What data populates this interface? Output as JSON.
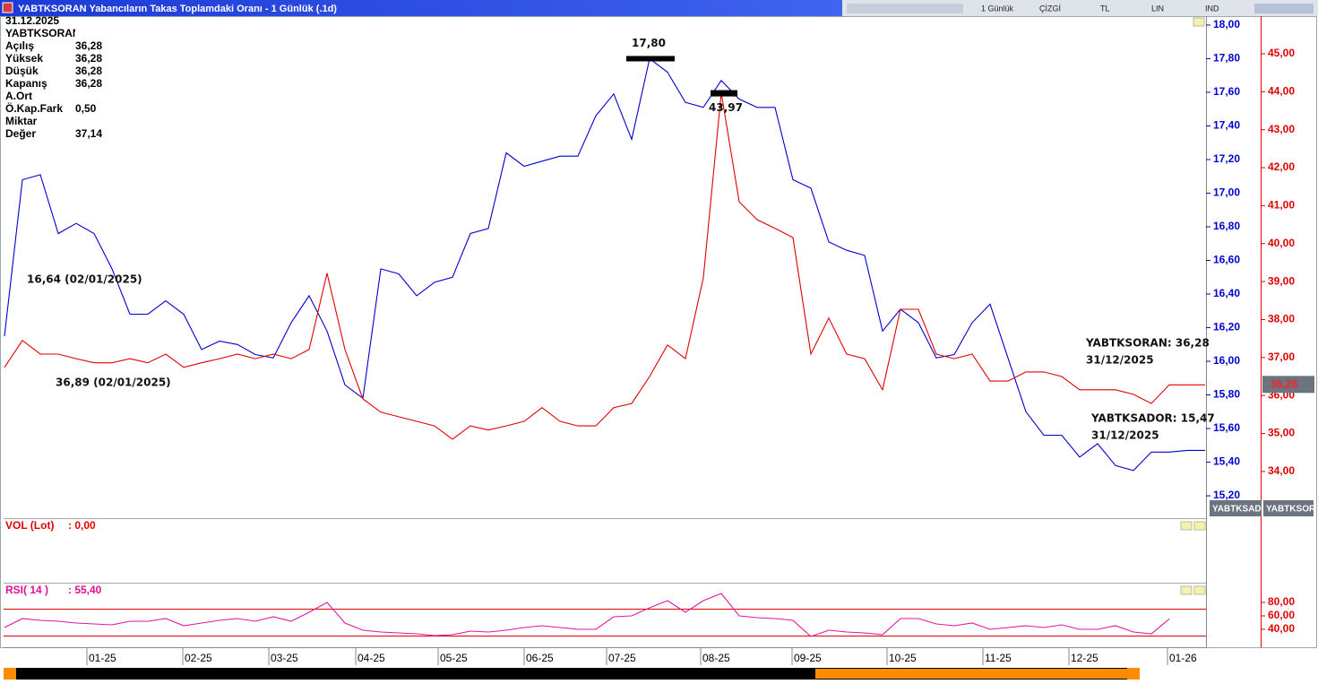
{
  "window": {
    "title": "YABTKSORAN Yabancıların Takas Toplamdaki Oranı - 1 Günlük (.1d)",
    "toolbar": [
      "1 Günlük",
      "ÇİZGİ",
      "TL",
      "LIN",
      "IND"
    ]
  },
  "info": {
    "date": "31.12.2025",
    "symbol": "YABTKSORAN",
    "rows": [
      {
        "label": "Açılış",
        "value": "36,28"
      },
      {
        "label": "Yüksek",
        "value": "36,28"
      },
      {
        "label": "Düşük",
        "value": "36,28"
      },
      {
        "label": "Kapanış",
        "value": "36,28"
      },
      {
        "label": "A.Ort"
      },
      {
        "label": "Ö.Kap.Fark",
        "value": "0,50"
      },
      {
        "label": "Miktar"
      },
      {
        "label": "Değer",
        "value": "37,14"
      }
    ]
  },
  "panels": {
    "vol": {
      "label": "VOL (Lot)",
      "value": ": 0,00"
    },
    "rsi": {
      "value": ": 55,40"
    }
  },
  "chart_data": [
    {
      "type": "line",
      "xlim": [
        0,
        67
      ],
      "xticks": [
        {
          "value": 4.6,
          "label": "01-25"
        },
        {
          "value": 9.95,
          "label": "02-25"
        },
        {
          "value": 14.75,
          "label": "03-25"
        },
        {
          "value": 19.6,
          "label": "04-25"
        },
        {
          "value": 24.2,
          "label": "05-25"
        },
        {
          "value": 29,
          "label": "06-25"
        },
        {
          "value": 33.6,
          "label": "07-25"
        },
        {
          "value": 38.85,
          "label": "08-25"
        },
        {
          "value": 43.95,
          "label": "09-25"
        },
        {
          "value": 49.25,
          "label": "10-25"
        },
        {
          "value": 54.6,
          "label": "11-25"
        },
        {
          "value": 59.4,
          "label": "12-25"
        },
        {
          "value": 64.9,
          "label": "01-26"
        }
      ],
      "ylim": [
        15.067,
        18.053
      ],
      "yticks": [
        {
          "value": 15.2,
          "label": "15,20"
        },
        {
          "value": 15.4,
          "label": "15,40"
        },
        {
          "value": 15.6,
          "label": "15,60"
        },
        {
          "value": 15.8,
          "label": "15,80"
        },
        {
          "value": 16,
          "label": "16,00"
        },
        {
          "value": 16.2,
          "label": "16,20"
        },
        {
          "value": 16.4,
          "label": "16,40"
        },
        {
          "value": 16.6,
          "label": "16,60"
        },
        {
          "value": 16.8,
          "label": "16,80"
        },
        {
          "value": 17,
          "label": "17,00"
        },
        {
          "value": 17.2,
          "label": "17,20"
        },
        {
          "value": 17.4,
          "label": "17,40"
        },
        {
          "value": 17.6,
          "label": "17,60"
        },
        {
          "value": 17.8,
          "label": "17,80"
        },
        {
          "value": 18,
          "label": "18,00"
        }
      ],
      "y2lim": [
        32.77,
        45.99
      ],
      "y2ticks": [
        {
          "value": 34,
          "label": "34,00"
        },
        {
          "value": 35,
          "label": "35,00"
        },
        {
          "value": 36,
          "label": "36,00"
        },
        {
          "value": 37,
          "label": "37,00"
        },
        {
          "value": 38,
          "label": "38,00"
        },
        {
          "value": 39,
          "label": "39,00"
        },
        {
          "value": 40,
          "label": "40,00"
        },
        {
          "value": 41,
          "label": "41,00"
        },
        {
          "value": 42,
          "label": "42,00"
        },
        {
          "value": 43,
          "label": "43,00"
        },
        {
          "value": 44,
          "label": "44,00"
        },
        {
          "value": 45,
          "label": "45,00"
        }
      ],
      "series": [
        {
          "name": "YABTKSADOR",
          "color": "#0000d0",
          "values": [
            16.15,
            17.08,
            17.11,
            16.76,
            16.82,
            16.76,
            16.55,
            16.28,
            16.28,
            16.36,
            16.28,
            16.07,
            16.12,
            16.1,
            16.04,
            16.02,
            16.23,
            16.39,
            16.18,
            15.86,
            15.78,
            16.55,
            16.52,
            16.39,
            16.47,
            16.5,
            16.76,
            16.79,
            17.24,
            17.16,
            17.19,
            17.22,
            17.22,
            17.46,
            17.59,
            17.32,
            17.8,
            17.72,
            17.54,
            17.51,
            17.67,
            17.56,
            17.51,
            17.51,
            17.08,
            17.03,
            16.71,
            16.66,
            16.63,
            16.18,
            16.31,
            16.23,
            16.02,
            16.04,
            16.23,
            16.34,
            16.02,
            15.7,
            15.56,
            15.56,
            15.43,
            15.51,
            15.38,
            15.35,
            15.46,
            15.46,
            15.47,
            15.47
          ]
        },
        {
          "name": "YABTKSORAN",
          "color": "#e00000",
          "axis": "y2",
          "last_label": "36,28",
          "values": [
            36.74,
            37.45,
            37.09,
            37.09,
            36.97,
            36.86,
            36.86,
            36.97,
            36.86,
            37.09,
            36.74,
            36.86,
            36.97,
            37.09,
            36.97,
            37.09,
            36.97,
            37.21,
            39.22,
            37.21,
            35.91,
            35.56,
            35.44,
            35.32,
            35.2,
            34.85,
            35.2,
            35.09,
            35.2,
            35.32,
            35.68,
            35.32,
            35.2,
            35.2,
            35.68,
            35.79,
            36.5,
            37.33,
            36.97,
            39.1,
            43.97,
            41.1,
            40.63,
            40.4,
            40.16,
            37.09,
            38.04,
            37.09,
            36.97,
            36.15,
            38.27,
            38.27,
            37.09,
            36.97,
            37.09,
            36.38,
            36.38,
            36.62,
            36.62,
            36.5,
            36.15,
            36.15,
            36.15,
            36.03,
            35.79,
            36.28,
            36.28,
            36.28
          ]
        }
      ],
      "annotations": [
        "17,80",
        "43,97",
        "16,64 (02/01/2025)",
        "36,89 (02/01/2025)",
        "YABTKSORAN: 36,28",
        "31/12/2025",
        "YABTKSADOR: 15,47",
        "31/12/2025"
      ]
    },
    {
      "type": "line",
      "xlim": [
        0,
        67
      ],
      "ylim": [
        13.3,
        109.3
      ],
      "yticks": [
        {
          "value": 40,
          "label": "40,00"
        },
        {
          "value": 60,
          "label": "60,00"
        },
        {
          "value": 80,
          "label": "80,00"
        }
      ],
      "hlines": [
        70,
        30
      ],
      "hline_color": "#e00000",
      "series": [
        {
          "name": "RSI( 14 )",
          "color": "#e0189c",
          "values": [
            42.7,
            56,
            53.3,
            52,
            49.3,
            48,
            46.7,
            52,
            52,
            56,
            45.3,
            49.3,
            53.3,
            56,
            52,
            58.7,
            52,
            65.3,
            80,
            49.3,
            38.7,
            36,
            34.7,
            33.3,
            30.7,
            32,
            37.3,
            36,
            38.7,
            42.7,
            45.3,
            42.7,
            40,
            40,
            58.7,
            60,
            72,
            82.7,
            65.3,
            82.7,
            93.3,
            60,
            57.3,
            56,
            53.3,
            29.3,
            38.7,
            36,
            34.7,
            32,
            56,
            56,
            48,
            45.3,
            49.3,
            40,
            42.7,
            45.3,
            42.7,
            46.7,
            40,
            40,
            45.3,
            36,
            33.3,
            55.4
          ]
        }
      ]
    }
  ]
}
